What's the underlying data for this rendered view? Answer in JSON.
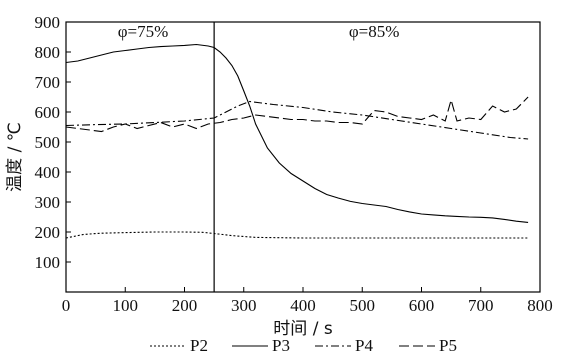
{
  "chart_data": {
    "type": "line",
    "title": "",
    "xlabel": "时间 / s",
    "ylabel": "温度 / ℃",
    "xlim": [
      0,
      800
    ],
    "ylim": [
      0,
      900
    ],
    "xticks": [
      0,
      100,
      200,
      300,
      400,
      500,
      600,
      700,
      800
    ],
    "yticks": [
      100,
      200,
      300,
      400,
      500,
      600,
      700,
      800,
      900
    ],
    "grid": false,
    "legend_position": "bottom",
    "vline_x": 250,
    "annotations": [
      {
        "text": "φ=75%",
        "x": 130,
        "y": 870
      },
      {
        "text": "φ=85%",
        "x": 520,
        "y": 870
      }
    ],
    "series": [
      {
        "name": "P2",
        "style": "dotted",
        "x": [
          0,
          30,
          60,
          100,
          150,
          200,
          230,
          250,
          280,
          320,
          400,
          500,
          600,
          700,
          780
        ],
        "y": [
          180,
          192,
          196,
          198,
          200,
          200,
          199,
          195,
          188,
          182,
          180,
          180,
          180,
          180,
          180
        ]
      },
      {
        "name": "P3",
        "style": "solid",
        "x": [
          0,
          20,
          40,
          60,
          80,
          100,
          120,
          140,
          160,
          180,
          200,
          220,
          240,
          250,
          260,
          270,
          280,
          290,
          300,
          310,
          320,
          340,
          360,
          380,
          400,
          420,
          440,
          460,
          480,
          500,
          520,
          540,
          560,
          580,
          600,
          620,
          640,
          660,
          680,
          700,
          720,
          740,
          760,
          780
        ],
        "y": [
          765,
          770,
          780,
          790,
          800,
          805,
          810,
          815,
          818,
          820,
          822,
          825,
          820,
          815,
          800,
          780,
          755,
          720,
          670,
          620,
          560,
          480,
          430,
          395,
          370,
          345,
          325,
          313,
          302,
          295,
          290,
          285,
          275,
          267,
          260,
          257,
          254,
          252,
          250,
          249,
          247,
          242,
          236,
          232
        ]
      },
      {
        "name": "P4",
        "style": "dashdot",
        "x": [
          0,
          50,
          100,
          150,
          200,
          250,
          270,
          290,
          310,
          330,
          350,
          400,
          450,
          500,
          550,
          600,
          650,
          700,
          750,
          780
        ],
        "y": [
          555,
          558,
          560,
          565,
          570,
          580,
          600,
          620,
          635,
          630,
          625,
          615,
          600,
          590,
          575,
          560,
          545,
          530,
          515,
          510
        ]
      },
      {
        "name": "P5",
        "style": "longdash",
        "x": [
          0,
          20,
          40,
          60,
          80,
          100,
          120,
          140,
          160,
          180,
          200,
          220,
          240,
          260,
          280,
          300,
          320,
          340,
          360,
          380,
          400,
          420,
          440,
          460,
          480,
          500,
          520,
          540,
          560,
          580,
          600,
          620,
          640,
          650,
          660,
          680,
          700,
          720,
          740,
          760,
          780
        ],
        "y": [
          550,
          545,
          540,
          535,
          550,
          560,
          545,
          555,
          565,
          550,
          560,
          545,
          560,
          565,
          575,
          580,
          590,
          585,
          580,
          575,
          575,
          570,
          570,
          565,
          565,
          560,
          605,
          600,
          585,
          580,
          575,
          590,
          570,
          640,
          570,
          580,
          575,
          620,
          600,
          610,
          650
        ]
      }
    ]
  }
}
